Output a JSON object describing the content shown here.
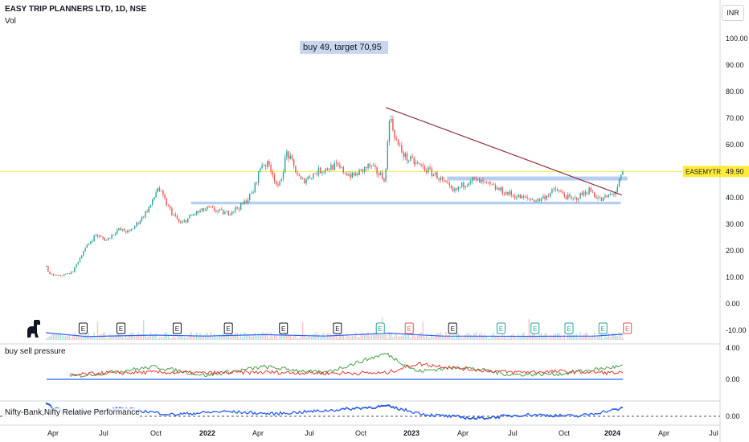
{
  "header": {
    "symbol_line": "EASY TRIP PLANNERS LTD, 1D, NSE",
    "volume_label": "Vol"
  },
  "currency": "INR",
  "annotation": "buy 49, target 70,95",
  "panels": {
    "pressure_label": "buy sell pressure",
    "relative_label": "Nifty-Bank,Nifty Relative Performance"
  },
  "price_badge": {
    "ticker": "EASEMYTRIP",
    "price": "49.90"
  },
  "colors": {
    "up": "#26a69a",
    "down": "#ef5350",
    "trendline": "#8b2f3a",
    "zone": "#a8c5ef",
    "price_line": "#f2f04a",
    "badge_bg": "#ffeb3b",
    "volume_line": "#2962ff",
    "buy": "#43a047",
    "sell": "#e53935",
    "baseline": "#2962ff",
    "relative": "#2962ff",
    "relative2": "#1e3a8a"
  },
  "chart_data": [
    {
      "type": "candlestick",
      "ylim": [
        -10,
        100
      ],
      "yticks": [
        "100.00",
        "90.00",
        "80.00",
        "70.00",
        "60.00",
        "50.00",
        "40.00",
        "30.00",
        "20.00",
        "10.00",
        "0.00",
        "-10.00"
      ],
      "x_labels": [
        "Apr",
        "Jul",
        "Oct",
        "2022",
        "Apr",
        "Jul",
        "Oct",
        "2023",
        "Apr",
        "Jul",
        "Oct",
        "2024",
        "Apr",
        "Jul"
      ],
      "price_path": [
        [
          "2021-03-19",
          14
        ],
        [
          "2021-03-25",
          11
        ],
        [
          "2021-04-15",
          10.5
        ],
        [
          "2021-05-05",
          12
        ],
        [
          "2021-05-25",
          20
        ],
        [
          "2021-06-15",
          26
        ],
        [
          "2021-07-05",
          24
        ],
        [
          "2021-07-25",
          28
        ],
        [
          "2021-08-15",
          27
        ],
        [
          "2021-09-05",
          32
        ],
        [
          "2021-09-25",
          38
        ],
        [
          "2021-10-05",
          44
        ],
        [
          "2021-10-25",
          36
        ],
        [
          "2021-11-15",
          30
        ],
        [
          "2021-12-10",
          34
        ],
        [
          "2022-01-05",
          36
        ],
        [
          "2022-02-05",
          34
        ],
        [
          "2022-03-05",
          37
        ],
        [
          "2022-03-25",
          42
        ],
        [
          "2022-04-10",
          53
        ],
        [
          "2022-04-25",
          52
        ],
        [
          "2022-05-10",
          43
        ],
        [
          "2022-05-25",
          57
        ],
        [
          "2022-06-20",
          46
        ],
        [
          "2022-07-20",
          50
        ],
        [
          "2022-08-20",
          52
        ],
        [
          "2022-09-20",
          48
        ],
        [
          "2022-10-20",
          52
        ],
        [
          "2022-11-18",
          47
        ],
        [
          "2022-11-25",
          71
        ],
        [
          "2022-12-10",
          60
        ],
        [
          "2022-12-25",
          55
        ],
        [
          "2023-01-20",
          52
        ],
        [
          "2023-02-20",
          48
        ],
        [
          "2023-03-20",
          42
        ],
        [
          "2023-04-20",
          47
        ],
        [
          "2023-05-20",
          45
        ],
        [
          "2023-06-20",
          42
        ],
        [
          "2023-07-20",
          40
        ],
        [
          "2023-08-20",
          39
        ],
        [
          "2023-09-20",
          43
        ],
        [
          "2023-10-20",
          39
        ],
        [
          "2023-11-20",
          43
        ],
        [
          "2023-12-10",
          39
        ],
        [
          "2024-01-05",
          42
        ],
        [
          "2024-01-20",
          49.9
        ]
      ],
      "trendline": [
        [
          "2022-11-20",
          74
        ],
        [
          "2024-01-18",
          41
        ]
      ],
      "resistance_zone": {
        "from": "2023-03-10",
        "to": "2024-01-28",
        "low": 46.5,
        "high": 48
      },
      "support_zone": {
        "from": "2021-12-05",
        "to": "2024-01-16",
        "low": 37.5,
        "high": 38.5
      },
      "current_price": 49.9,
      "volume_line": [
        [
          "2021-03-19",
          1
        ],
        [
          "2021-06-01",
          0.2
        ],
        [
          "2021-10-01",
          0.5
        ],
        [
          "2022-01-01",
          0.3
        ],
        [
          "2022-04-15",
          0.6
        ],
        [
          "2022-08-01",
          0.3
        ],
        [
          "2022-11-25",
          0.9
        ],
        [
          "2023-03-01",
          0.3
        ],
        [
          "2023-08-01",
          0.25
        ],
        [
          "2023-12-01",
          0.3
        ],
        [
          "2024-01-20",
          0.7
        ]
      ],
      "earnings_markers": [
        {
          "date": "2021-05-25",
          "label": "E",
          "style": "dark"
        },
        {
          "date": "2021-08-01",
          "label": "E",
          "style": "dark"
        },
        {
          "date": "2021-11-10",
          "label": "E",
          "style": "dark"
        },
        {
          "date": "2022-02-10",
          "label": "E",
          "style": "dark"
        },
        {
          "date": "2022-05-20",
          "label": "E",
          "style": "dark"
        },
        {
          "date": "2022-08-25",
          "label": "E",
          "style": "dark"
        },
        {
          "date": "2022-11-10",
          "label": "E",
          "style": "green"
        },
        {
          "date": "2023-01-01",
          "label": "E",
          "style": "red"
        },
        {
          "date": "2023-03-20",
          "label": "E",
          "style": "dark"
        },
        {
          "date": "2023-06-15",
          "label": "E",
          "style": "green"
        },
        {
          "date": "2023-08-15",
          "label": "E",
          "style": "green"
        },
        {
          "date": "2023-10-15",
          "label": "E",
          "style": "green"
        },
        {
          "date": "2023-12-15",
          "label": "E",
          "style": "green"
        },
        {
          "date": "2024-01-28",
          "label": "E",
          "style": "red"
        }
      ]
    },
    {
      "type": "line",
      "name_label": "buy sell pressure",
      "yticks": [
        "4.00",
        "0.00"
      ],
      "ylim": [
        0,
        4
      ],
      "series": [
        {
          "key": "buy",
          "values": [
            [
              "2021-05-01",
              0.3
            ],
            [
              "2021-07-01",
              0.8
            ],
            [
              "2021-10-01",
              1.6
            ],
            [
              "2022-01-01",
              0.5
            ],
            [
              "2022-04-15",
              1.6
            ],
            [
              "2022-08-01",
              0.8
            ],
            [
              "2022-11-20",
              3.3
            ],
            [
              "2023-01-15",
              1.0
            ],
            [
              "2023-04-01",
              1.6
            ],
            [
              "2023-07-01",
              0.6
            ],
            [
              "2023-10-01",
              0.7
            ],
            [
              "2024-01-20",
              1.7
            ]
          ]
        },
        {
          "key": "sell",
          "values": [
            [
              "2021-05-01",
              0.5
            ],
            [
              "2021-07-01",
              0.8
            ],
            [
              "2021-10-01",
              0.9
            ],
            [
              "2022-01-01",
              0.8
            ],
            [
              "2022-04-15",
              0.9
            ],
            [
              "2022-08-01",
              0.8
            ],
            [
              "2022-11-20",
              0.8
            ],
            [
              "2023-01-15",
              2.0
            ],
            [
              "2023-04-01",
              1.4
            ],
            [
              "2023-07-01",
              0.9
            ],
            [
              "2023-10-01",
              1.0
            ],
            [
              "2024-01-20",
              0.8
            ]
          ]
        }
      ],
      "baseline": 0
    },
    {
      "type": "line",
      "name_label": "Nifty-Bank,Nifty Relative Performance",
      "yticks": [
        "0.00"
      ],
      "ylim": [
        -1,
        2
      ],
      "series": [
        {
          "key": "relative",
          "values": [
            [
              "2021-03-19",
              1.5
            ],
            [
              "2021-05-01",
              0.3
            ],
            [
              "2021-08-01",
              1.0
            ],
            [
              "2021-11-01",
              0.2
            ],
            [
              "2022-02-01",
              0.6
            ],
            [
              "2022-05-01",
              0.3
            ],
            [
              "2022-08-01",
              0.7
            ],
            [
              "2022-11-20",
              1.3
            ],
            [
              "2023-02-01",
              0.2
            ],
            [
              "2023-05-01",
              -0.3
            ],
            [
              "2023-08-01",
              0.2
            ],
            [
              "2023-11-01",
              0.0
            ],
            [
              "2024-01-20",
              1.0
            ]
          ]
        }
      ],
      "baseline": 0
    }
  ]
}
